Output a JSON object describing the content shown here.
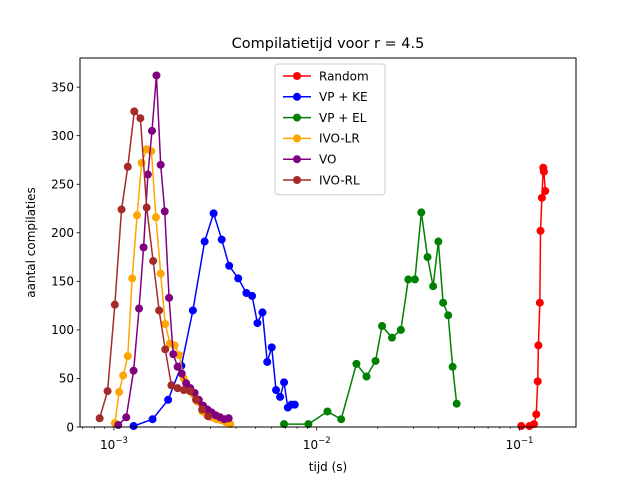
{
  "chart_data": {
    "type": "line",
    "title": "Compilatietijd voor r = 4.5",
    "xlabel": "tijd (s)",
    "ylabel": "aantal compilaties",
    "xscale": "log",
    "xlim": [
      0.00068,
      0.19
    ],
    "ylim": [
      0,
      380
    ],
    "x_ticks": [
      0.001,
      0.01,
      0.1
    ],
    "x_tick_labels": [
      {
        "base": "10",
        "exp": "−3"
      },
      {
        "base": "10",
        "exp": "−2"
      },
      {
        "base": "10",
        "exp": "−1"
      }
    ],
    "y_ticks": [
      0,
      50,
      100,
      150,
      200,
      250,
      300,
      350
    ],
    "legend_position": "upper-center",
    "grid": false,
    "series": [
      {
        "name": "Random",
        "color": "#ff0000",
        "x": [
          0.102,
          0.112,
          0.118,
          0.121,
          0.123,
          0.124,
          0.126,
          0.127,
          0.129,
          0.131,
          0.132,
          0.134
        ],
        "y": [
          1,
          1,
          3,
          13,
          47,
          84,
          128,
          202,
          236,
          267,
          263,
          243
        ]
      },
      {
        "name": "VP + KE",
        "color": "#0000ff",
        "x": [
          0.00125,
          0.00155,
          0.00185,
          0.00215,
          0.00245,
          0.0028,
          0.0031,
          0.0034,
          0.0037,
          0.0041,
          0.0045,
          0.0048,
          0.0051,
          0.0054,
          0.0057,
          0.006,
          0.0063,
          0.0066,
          0.0069,
          0.0072,
          0.0075,
          0.0078
        ],
        "y": [
          1,
          8,
          28,
          63,
          120,
          191,
          220,
          193,
          166,
          153,
          138,
          135,
          107,
          118,
          67,
          82,
          38,
          31,
          46,
          20,
          23,
          23
        ]
      },
      {
        "name": "VP + EL",
        "color": "#008000",
        "x": [
          0.0069,
          0.0091,
          0.0113,
          0.0132,
          0.0157,
          0.0176,
          0.0195,
          0.021,
          0.0235,
          0.026,
          0.0283,
          0.0305,
          0.0328,
          0.0352,
          0.0375,
          0.0398,
          0.042,
          0.0445,
          0.0468,
          0.049
        ],
        "y": [
          3,
          3,
          16,
          8,
          65,
          52,
          68,
          104,
          92,
          100,
          152,
          152,
          221,
          175,
          145,
          191,
          128,
          115,
          62,
          24
        ]
      },
      {
        "name": "IVO-LR",
        "color": "#ffa500",
        "x": [
          0.00101,
          0.00106,
          0.00111,
          0.00117,
          0.00123,
          0.0013,
          0.00137,
          0.00145,
          0.00153,
          0.00161,
          0.0017,
          0.00179,
          0.00189,
          0.00199,
          0.0021,
          0.00221,
          0.00233,
          0.00246,
          0.00259,
          0.00273,
          0.00288,
          0.00304,
          0.0032,
          0.00338,
          0.00356,
          0.00375
        ],
        "y": [
          4,
          36,
          53,
          73,
          153,
          218,
          272,
          286,
          284,
          216,
          158,
          106,
          86,
          84,
          74,
          50,
          38,
          34,
          26,
          16,
          12,
          10,
          8,
          7,
          5,
          3
        ]
      },
      {
        "name": "VO",
        "color": "#800080",
        "x": [
          0.00105,
          0.00115,
          0.00125,
          0.00133,
          0.0014,
          0.00147,
          0.00154,
          0.00162,
          0.0017,
          0.00178,
          0.00187,
          0.00196,
          0.00206,
          0.00216,
          0.00227,
          0.00238,
          0.0025,
          0.00262,
          0.00275,
          0.00289,
          0.00303,
          0.00318,
          0.00334,
          0.0035,
          0.00368
        ],
        "y": [
          2,
          10,
          58,
          122,
          185,
          260,
          305,
          362,
          270,
          222,
          133,
          75,
          62,
          55,
          45,
          40,
          35,
          28,
          22,
          18,
          15,
          12,
          10,
          8,
          9
        ]
      },
      {
        "name": "IVO-RL",
        "color": "#a52a2a",
        "x": [
          0.00085,
          0.00093,
          0.00101,
          0.00109,
          0.00117,
          0.00126,
          0.00135,
          0.00145,
          0.00156,
          0.00167,
          0.00179,
          0.00192,
          0.00206,
          0.00221,
          0.00237,
          0.00254,
          0.00272,
          0.00292
        ],
        "y": [
          9,
          37,
          126,
          224,
          268,
          325,
          318,
          226,
          171,
          120,
          80,
          43,
          40,
          38,
          37,
          28,
          18,
          11
        ]
      }
    ]
  }
}
